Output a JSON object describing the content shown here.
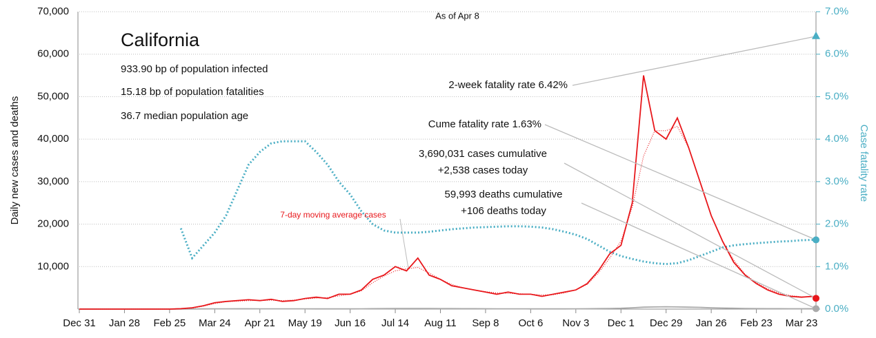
{
  "chart_data": {
    "type": "line",
    "title": "California",
    "subtitle": "As of Apr 8",
    "info": [
      "933.90 bp of population infected",
      "15.18 bp of population fatalities",
      "36.7 median population age"
    ],
    "ylabel": "Daily new cases and deaths",
    "y2label": "Case fatality rate",
    "categories": [
      "Dec 31",
      null,
      null,
      null,
      "Jan 28",
      null,
      null,
      null,
      "Feb 25",
      null,
      null,
      null,
      "Mar 24",
      null,
      null,
      null,
      "Apr 21",
      null,
      null,
      null,
      "May 19",
      null,
      null,
      null,
      "Jun 16",
      null,
      null,
      null,
      "Jul 14",
      null,
      null,
      null,
      "Aug 11",
      null,
      null,
      null,
      "Sep 8",
      null,
      null,
      null,
      "Oct 6",
      null,
      null,
      null,
      "Nov 3",
      null,
      null,
      null,
      "Dec 1",
      null,
      null,
      null,
      "Dec 29",
      null,
      null,
      null,
      "Jan 26",
      null,
      null,
      null,
      "Feb 23",
      null,
      null,
      null,
      "Mar 23",
      null
    ],
    "series": [
      {
        "color": "#e8171b",
        "style": "solid",
        "values": [
          0,
          0,
          0,
          0,
          0,
          0,
          0,
          0,
          0,
          100,
          300,
          800,
          1500,
          1800,
          2000,
          2200,
          2000,
          2300,
          1800,
          2000,
          2500,
          2800,
          2500,
          3500,
          3500,
          4500,
          7000,
          8000,
          10000,
          9000,
          12000,
          8000,
          7000,
          5500,
          5000,
          4500,
          4000,
          3500,
          4000,
          3500,
          3500,
          3000,
          3500,
          4000,
          4500,
          6000,
          9000,
          13000,
          15000,
          25000,
          55000,
          42000,
          40000,
          45000,
          38000,
          30000,
          22000,
          16000,
          11000,
          8000,
          6000,
          4500,
          3500,
          3000,
          2800,
          3000
        ]
      },
      {
        "name": "7-day moving average cases",
        "color": "#e8171b",
        "style": "dotted",
        "values": [
          0,
          0,
          0,
          0,
          0,
          0,
          0,
          0,
          0,
          50,
          250,
          700,
          1300,
          1700,
          1900,
          2000,
          2050,
          2100,
          2000,
          2100,
          2400,
          2600,
          2700,
          3100,
          3500,
          4300,
          6200,
          7800,
          9000,
          9500,
          9800,
          8500,
          7000,
          5800,
          5000,
          4500,
          4100,
          3800,
          3700,
          3600,
          3500,
          3300,
          3400,
          3800,
          4500,
          5800,
          8500,
          12000,
          16000,
          24000,
          36000,
          42000,
          42000,
          43000,
          38000,
          30000,
          22000,
          16000,
          11500,
          8200,
          6200,
          4800,
          3800,
          3200,
          2900,
          2900
        ]
      },
      {
        "color": "#aaaaaa",
        "style": "solid",
        "values": [
          0,
          0,
          0,
          0,
          0,
          0,
          0,
          0,
          0,
          5,
          20,
          50,
          60,
          70,
          80,
          80,
          70,
          70,
          60,
          60,
          60,
          50,
          50,
          50,
          50,
          70,
          100,
          120,
          130,
          140,
          140,
          130,
          120,
          110,
          100,
          90,
          80,
          70,
          60,
          60,
          50,
          50,
          50,
          50,
          60,
          80,
          110,
          150,
          200,
          300,
          450,
          500,
          550,
          500,
          450,
          400,
          300,
          250,
          200,
          150,
          120,
          100,
          90,
          80,
          80,
          100
        ]
      },
      {
        "color": "#4aaec4",
        "style": "fat-dotted",
        "axis": "y2",
        "values": [
          null,
          null,
          null,
          null,
          null,
          null,
          null,
          null,
          null,
          1.9,
          1.2,
          1.5,
          1.8,
          2.2,
          2.8,
          3.4,
          3.7,
          3.9,
          3.95,
          3.95,
          3.95,
          3.7,
          3.4,
          3.0,
          2.7,
          2.3,
          2.0,
          1.85,
          1.8,
          1.8,
          1.8,
          1.82,
          1.85,
          1.88,
          1.9,
          1.92,
          1.93,
          1.94,
          1.95,
          1.95,
          1.94,
          1.92,
          1.88,
          1.82,
          1.75,
          1.65,
          1.5,
          1.35,
          1.25,
          1.18,
          1.12,
          1.08,
          1.06,
          1.08,
          1.15,
          1.25,
          1.35,
          1.45,
          1.5,
          1.53,
          1.55,
          1.57,
          1.59,
          1.6,
          1.62,
          1.63
        ]
      }
    ],
    "annotations": [
      {
        "text": [
          "2-week fatality rate 6.42%"
        ],
        "value": 6.42,
        "axis": "y2",
        "marker": "triangle",
        "color": "#4aaec4"
      },
      {
        "text": [
          "Cume fatality rate 1.63%"
        ],
        "value": 1.63,
        "axis": "y2",
        "marker": "circle",
        "color": "#4aaec4"
      },
      {
        "text": [
          "3,690,031 cases cumulative",
          "+2,538 cases today"
        ],
        "value": 2538,
        "axis": "y",
        "marker": "circle",
        "color": "#e8171b"
      },
      {
        "text": [
          "59,993 deaths cumulative",
          "+106 deaths today"
        ],
        "value": 106,
        "axis": "y",
        "marker": "circle",
        "color": "#aaaaaa"
      }
    ],
    "ylim": [
      0,
      70000
    ],
    "yticks": [
      {
        "value": 10000,
        "label": "10,000"
      },
      {
        "value": 20000,
        "label": "20,000"
      },
      {
        "value": 30000,
        "label": "30,000"
      },
      {
        "value": 40000,
        "label": "40,000"
      },
      {
        "value": 50000,
        "label": "50,000"
      },
      {
        "value": 60000,
        "label": "60,000"
      },
      {
        "value": 70000,
        "label": "70,000"
      }
    ],
    "y2lim": [
      0,
      7
    ],
    "y2ticks": [
      {
        "value": 0,
        "label": "0.0%"
      },
      {
        "value": 1,
        "label": "1.0%"
      },
      {
        "value": 2,
        "label": "2.0%"
      },
      {
        "value": 3,
        "label": "3.0%"
      },
      {
        "value": 4,
        "label": "4.0%"
      },
      {
        "value": 5,
        "label": "5.0%"
      },
      {
        "value": 6,
        "label": "6.0%"
      },
      {
        "value": 7,
        "label": "7.0%"
      }
    ],
    "y2color": "#4aaec4",
    "grid": true
  }
}
